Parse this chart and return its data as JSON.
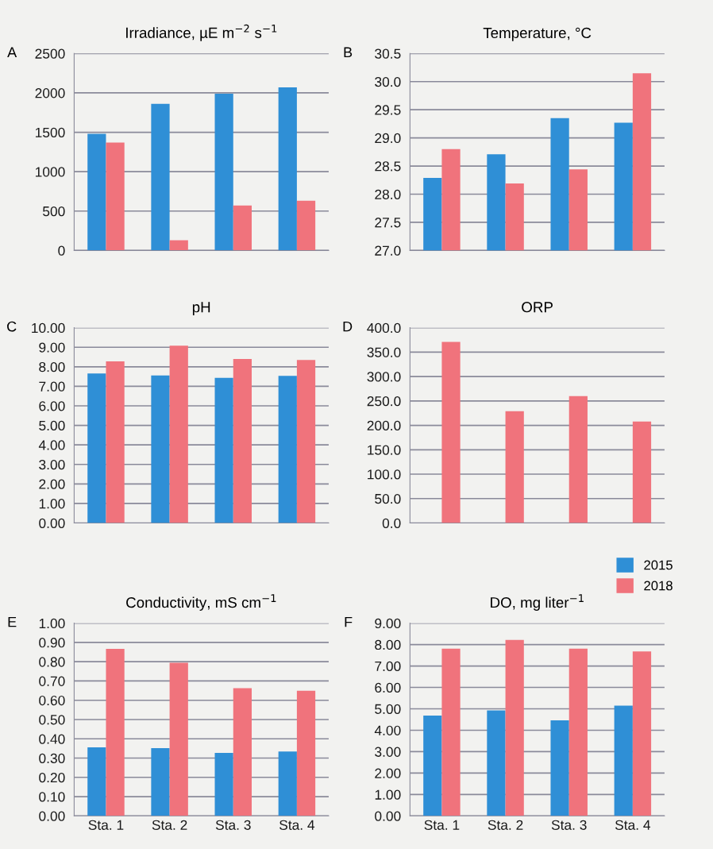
{
  "chart_data": [
    {
      "type": "bar",
      "title": "Irradiance, µE m$^{−2}$ s$^{−1}$",
      "annotations": [
        "A"
      ],
      "categories": [
        null,
        null,
        null,
        null
      ],
      "series": [
        {
          "color": "#2f8fd6",
          "values": [
            1480,
            1860,
            1990,
            2070
          ]
        },
        {
          "color": "#f0737c",
          "values": [
            1370,
            130,
            570,
            630
          ]
        }
      ],
      "ylim": [
        0,
        2500
      ],
      "yticks": [
        0,
        500,
        1000,
        1500,
        2000,
        2500
      ],
      "grid": "y",
      "tick_labels": "y",
      "legend": false
    },
    {
      "type": "bar",
      "title": "Temperature, °C",
      "annotations": [
        "B"
      ],
      "categories": [
        null,
        null,
        null,
        null
      ],
      "series": [
        {
          "color": "#2f8fd6",
          "values": [
            28.29,
            28.71,
            29.35,
            29.27
          ]
        },
        {
          "color": "#f0737c",
          "values": [
            28.8,
            28.19,
            28.44,
            30.15
          ]
        }
      ],
      "ylim": [
        27,
        30.5
      ],
      "yticks": [
        {
          "value": 27,
          "label": "27.0"
        },
        27.5,
        {
          "value": 28,
          "label": "28.0"
        },
        28.5,
        {
          "value": 29,
          "label": "29.0"
        },
        29.5,
        {
          "value": 30,
          "label": "30.0"
        },
        30.5
      ],
      "grid": "y",
      "tick_labels": "y",
      "legend": false
    },
    {
      "type": "bar",
      "title": "pH",
      "annotations": [
        "C"
      ],
      "categories": [
        null,
        null,
        null,
        null
      ],
      "series": [
        {
          "color": "#2f8fd6",
          "values": [
            7.66,
            7.56,
            7.43,
            7.53
          ]
        },
        {
          "color": "#f0737c",
          "values": [
            8.28,
            9.08,
            8.4,
            8.35
          ]
        }
      ],
      "ylim": [
        0,
        10
      ],
      "yticks": [
        {
          "value": 0,
          "label": "0.00"
        },
        {
          "value": 1,
          "label": "1.00"
        },
        {
          "value": 2,
          "label": "2.00"
        },
        {
          "value": 3,
          "label": "3.00"
        },
        {
          "value": 4,
          "label": "4.00"
        },
        {
          "value": 5,
          "label": "5.00"
        },
        {
          "value": 6,
          "label": "6.00"
        },
        {
          "value": 7,
          "label": "7.00"
        },
        {
          "value": 8,
          "label": "8.00"
        },
        {
          "value": 9,
          "label": "9.00"
        },
        {
          "value": 10,
          "label": "10.00"
        }
      ],
      "grid": "y",
      "tick_labels": "y",
      "legend": false
    },
    {
      "type": "bar",
      "title": "ORP",
      "annotations": [
        "D"
      ],
      "categories": [
        null,
        null,
        null,
        null
      ],
      "series": [
        {
          "name": "2015",
          "color": "#2f8fd6",
          "values": [
            null,
            null,
            null,
            null
          ]
        },
        {
          "name": "2018",
          "color": "#f0737c",
          "values": [
            371,
            229,
            260,
            208
          ]
        }
      ],
      "ylim": [
        0,
        400
      ],
      "yticks": [
        {
          "value": 0,
          "label": "0.0"
        },
        {
          "value": 50,
          "label": "50.0"
        },
        {
          "value": 100,
          "label": "100.0"
        },
        {
          "value": 150,
          "label": "150.0"
        },
        {
          "value": 200,
          "label": "200.0"
        },
        {
          "value": 250,
          "label": "250.0"
        },
        {
          "value": 300,
          "label": "300.0"
        },
        {
          "value": 350,
          "label": "350.0"
        },
        {
          "value": 400,
          "label": "400.0"
        }
      ],
      "grid": "y",
      "tick_labels": "y",
      "legend": "bottom right"
    },
    {
      "type": "bar",
      "title": "Conductivity, mS cm$^{−1}$",
      "annotations": [
        "E"
      ],
      "categories": [
        "Sta. 1",
        "Sta. 2",
        "Sta. 3",
        "Sta. 4"
      ],
      "series": [
        {
          "color": "#2f8fd6",
          "values": [
            0.356,
            0.352,
            0.327,
            0.334
          ]
        },
        {
          "color": "#f0737c",
          "values": [
            0.867,
            0.795,
            0.663,
            0.649
          ]
        }
      ],
      "ylim": [
        0,
        1
      ],
      "yticks": [
        {
          "value": 0,
          "label": "0.00"
        },
        {
          "value": 0.1,
          "label": "0.10"
        },
        {
          "value": 0.2,
          "label": "0.20"
        },
        {
          "value": 0.3,
          "label": "0.30"
        },
        {
          "value": 0.4,
          "label": "0.40"
        },
        {
          "value": 0.5,
          "label": "0.50"
        },
        {
          "value": 0.6,
          "label": "0.60"
        },
        {
          "value": 0.7,
          "label": "0.70"
        },
        {
          "value": 0.8,
          "label": "0.80"
        },
        {
          "value": 0.9,
          "label": "0.90"
        },
        {
          "value": 1,
          "label": "1.00"
        }
      ],
      "grid": "y",
      "legend": false
    },
    {
      "type": "bar",
      "title": "DO, mg liter$^{−1}$",
      "annotations": [
        "F"
      ],
      "categories": [
        "Sta. 1",
        "Sta. 2",
        "Sta. 3",
        "Sta. 4"
      ],
      "series": [
        {
          "color": "#2f8fd6",
          "values": [
            4.68,
            4.93,
            4.46,
            5.15
          ]
        },
        {
          "color": "#f0737c",
          "values": [
            7.81,
            8.22,
            7.81,
            7.68
          ]
        }
      ],
      "ylim": [
        0,
        9
      ],
      "yticks": [
        {
          "value": 0,
          "label": "0.00"
        },
        {
          "value": 1,
          "label": "1.00"
        },
        {
          "value": 2,
          "label": "2.00"
        },
        {
          "value": 3,
          "label": "3.00"
        },
        {
          "value": 4,
          "label": "4.00"
        },
        {
          "value": 5,
          "label": "5.00"
        },
        {
          "value": 6,
          "label": "6.00"
        },
        {
          "value": 7,
          "label": "7.00"
        },
        {
          "value": 8,
          "label": "8.00"
        },
        {
          "value": 9,
          "label": "9.00"
        }
      ],
      "grid": "y",
      "legend": false
    }
  ]
}
